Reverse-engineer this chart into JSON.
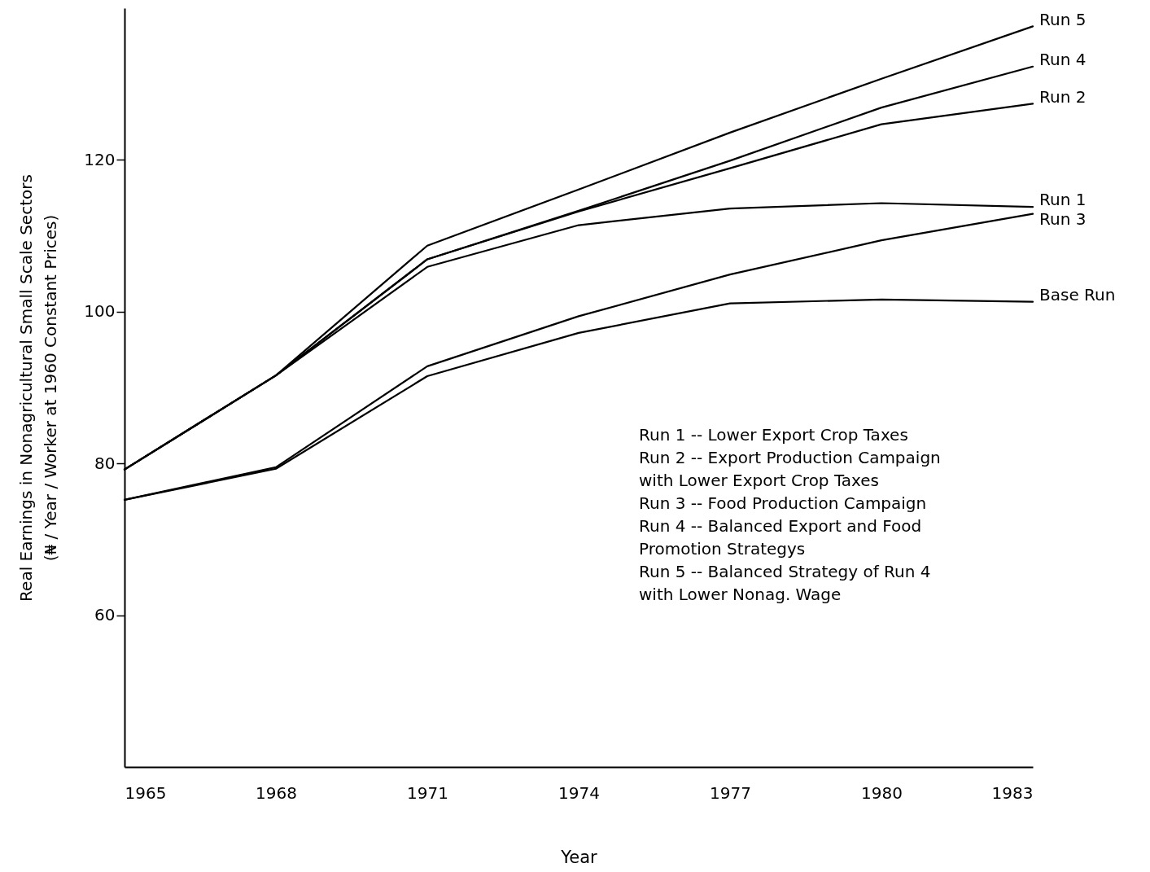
{
  "chart_data": {
    "type": "line",
    "xlabel": "Year",
    "ylabel": "Real Earnings in Nonagricultural Small Scale Sectors\n(₦ / Year / Worker at 1960 Constant Prices)",
    "x": [
      1965,
      1968,
      1971,
      1974,
      1977,
      1980,
      1983
    ],
    "series": [
      {
        "name": "Run 5",
        "color": "#000000",
        "values": [
          79.2,
          91.6,
          108.7,
          116.1,
          123.6,
          130.7,
          137.6
        ]
      },
      {
        "name": "Run 4",
        "color": "#000000",
        "values": [
          79.2,
          91.6,
          106.9,
          113.3,
          119.9,
          126.9,
          132.3
        ]
      },
      {
        "name": "Run 2",
        "color": "#000000",
        "values": [
          79.2,
          91.6,
          106.9,
          113.2,
          118.9,
          124.7,
          127.4
        ]
      },
      {
        "name": "Run 1",
        "color": "#000000",
        "values": [
          79.2,
          91.6,
          105.9,
          111.4,
          113.6,
          114.3,
          113.8
        ]
      },
      {
        "name": "Run 3",
        "color": "#000000",
        "values": [
          75.2,
          79.5,
          92.8,
          99.4,
          104.9,
          109.4,
          112.9
        ]
      },
      {
        "name": "Base Run",
        "color": "#000000",
        "values": [
          75.2,
          79.3,
          91.5,
          97.2,
          101.1,
          101.6,
          101.3
        ]
      }
    ],
    "xlim": [
      1965,
      1983
    ],
    "xticks": [
      1965,
      1968,
      1971,
      1974,
      1977,
      1980,
      1983
    ],
    "ylim": [
      40,
      140
    ],
    "yticks": [
      60,
      80,
      100,
      120
    ],
    "annotations": [
      "Run 1 --  Lower Export Crop Taxes",
      "Run 2 --  Export Production Campaign\n              with Lower Export Crop Taxes",
      "Run 3 --  Food Production Campaign",
      "Run 4 --  Balanced Export and Food\n              Promotion Strategys",
      "Run 5 --  Balanced Strategy of Run 4\n              with Lower Nonag. Wage"
    ],
    "line_style": "solid"
  }
}
